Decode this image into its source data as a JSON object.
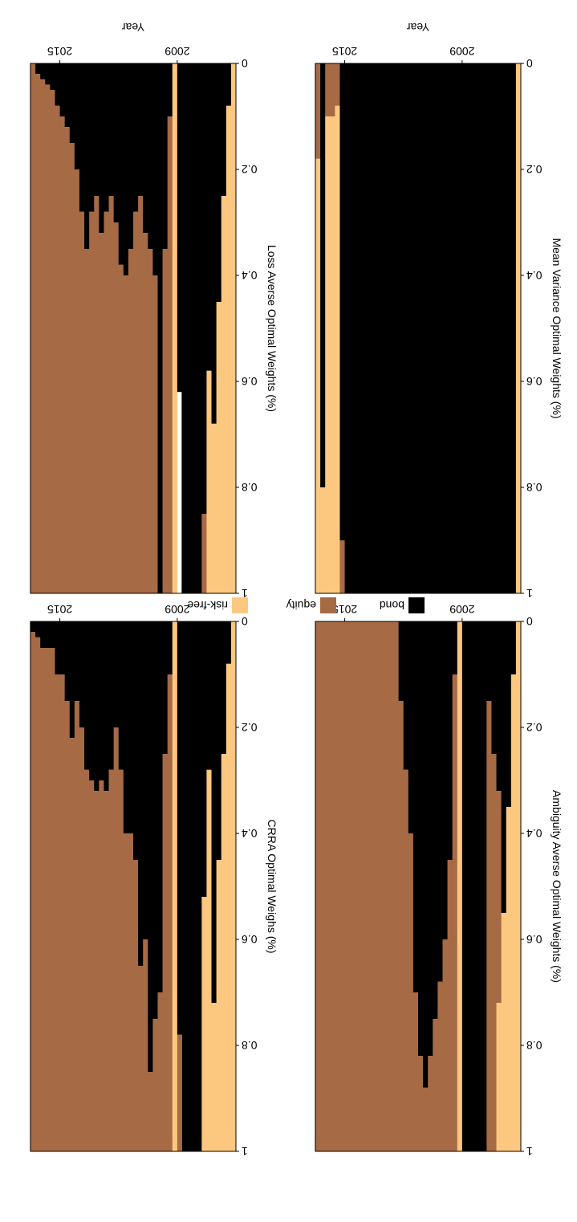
{
  "colors": {
    "bond": "#000000",
    "equity": "#a66a45",
    "risk_free": "#fcc77f"
  },
  "legend": {
    "placement": "bottom-center",
    "entries": [
      {
        "key": "bond",
        "label": "bond"
      },
      {
        "key": "equity",
        "label": "equity"
      },
      {
        "key": "risk_free",
        "label": "risk-free"
      }
    ]
  },
  "chart_data": [
    {
      "type": "area",
      "ylabel": "CRRA Optimal Weighs (%)",
      "xlabel": "Year",
      "x_ticks": [
        "2009",
        "2015"
      ],
      "ylim": [
        0,
        1
      ],
      "y_ticks": [
        "0",
        "0.2",
        "0.4",
        "0.6",
        "0.8",
        "1"
      ],
      "x": [
        2006.0,
        2006.25,
        2006.5,
        2006.75,
        2007.0,
        2007.25,
        2007.5,
        2007.75,
        2008.0,
        2008.25,
        2008.5,
        2008.75,
        2009.0,
        2009.25,
        2009.5,
        2009.75,
        2010.0,
        2010.25,
        2010.5,
        2010.75,
        2011.0,
        2011.25,
        2011.5,
        2011.75,
        2012.0,
        2012.25,
        2012.5,
        2012.75,
        2013.0,
        2013.25,
        2013.5,
        2013.75,
        2014.0,
        2014.25,
        2014.5,
        2014.75,
        2015.0,
        2015.25,
        2015.5,
        2015.75,
        2016.0,
        2016.25
      ],
      "series": [
        {
          "key": "risk_free",
          "values": [
            1.0,
            0.92,
            0.75,
            0.55,
            0.28,
            0.72,
            0.48,
            0.0,
            0.0,
            0.0,
            0.0,
            0.0,
            1.0,
            0.0,
            0.0,
            0.0,
            0.0,
            0.0,
            0.0,
            0.0,
            0.0,
            0.0,
            0.0,
            0.0,
            0.0,
            0.0,
            0.0,
            0.0,
            0.0,
            0.0,
            0.0,
            0.0,
            0.0,
            0.0,
            0.0,
            0.0,
            0.0,
            0.0,
            0.0,
            0.0,
            0.0,
            0.0
          ]
        },
        {
          "key": "equity",
          "values": [
            0.0,
            0.0,
            0.0,
            0.0,
            0.0,
            0.0,
            0.0,
            0.0,
            0.0,
            0.0,
            0.0,
            0.22,
            0.0,
            0.9,
            0.75,
            0.3,
            0.25,
            0.15,
            0.4,
            0.35,
            0.55,
            0.6,
            0.6,
            0.72,
            0.8,
            0.72,
            0.68,
            0.7,
            0.68,
            0.7,
            0.72,
            0.8,
            0.85,
            0.78,
            0.85,
            0.9,
            0.9,
            0.95,
            0.95,
            0.95,
            0.97,
            0.98
          ]
        },
        {
          "key": "bond",
          "values": [
            0.0,
            0.08,
            0.25,
            0.45,
            0.72,
            0.28,
            0.52,
            1.0,
            1.0,
            1.0,
            1.0,
            0.78,
            0.0,
            0.1,
            0.25,
            0.7,
            0.75,
            0.85,
            0.6,
            0.65,
            0.45,
            0.4,
            0.4,
            0.28,
            0.2,
            0.28,
            0.32,
            0.3,
            0.32,
            0.3,
            0.28,
            0.2,
            0.15,
            0.22,
            0.15,
            0.1,
            0.1,
            0.05,
            0.05,
            0.05,
            0.03,
            0.02
          ]
        }
      ]
    },
    {
      "type": "area",
      "ylabel": "Ambiguity Averse Optimal Weights (%)",
      "xlabel": "Year",
      "x_ticks": [
        "2009",
        "2015"
      ],
      "ylim": [
        0,
        1
      ],
      "y_ticks": [
        "0",
        "0.2",
        "0.4",
        "0.6",
        "0.8",
        "1"
      ],
      "x": [
        2006.0,
        2006.25,
        2006.5,
        2006.75,
        2007.0,
        2007.25,
        2007.5,
        2007.75,
        2008.0,
        2008.25,
        2008.5,
        2008.75,
        2009.0,
        2009.25,
        2009.5,
        2009.75,
        2010.0,
        2010.25,
        2010.5,
        2010.75,
        2011.0,
        2011.25,
        2011.5,
        2011.75,
        2012.0,
        2012.25,
        2012.5,
        2012.75,
        2013.0,
        2013.25,
        2013.5,
        2013.75,
        2014.0,
        2014.25,
        2014.5,
        2014.75,
        2015.0,
        2015.25,
        2015.5,
        2015.75,
        2016.0,
        2016.25
      ],
      "series": [
        {
          "key": "risk_free",
          "values": [
            1.0,
            0.9,
            0.65,
            0.45,
            0.28,
            0.0,
            0.0,
            0.0,
            0.0,
            0.0,
            0.0,
            0.0,
            1.0,
            0.0,
            0.0,
            0.0,
            0.0,
            0.0,
            0.0,
            0.0,
            0.0,
            0.0,
            0.0,
            0.0,
            0.0,
            0.0,
            0.0,
            0.0,
            0.0,
            0.0,
            0.0,
            0.0,
            0.0,
            0.0,
            0.0,
            0.0,
            0.0,
            0.0,
            0.0,
            0.0,
            0.0,
            0.0
          ]
        },
        {
          "key": "equity",
          "values": [
            0.0,
            0.0,
            0.0,
            0.0,
            0.4,
            0.75,
            0.85,
            0.0,
            0.0,
            0.0,
            0.0,
            0.0,
            0.0,
            0.9,
            0.55,
            0.4,
            0.32,
            0.25,
            0.18,
            0.12,
            0.18,
            0.3,
            0.6,
            0.72,
            0.85,
            1.0,
            1.0,
            1.0,
            1.0,
            1.0,
            1.0,
            1.0,
            1.0,
            1.0,
            1.0,
            1.0,
            1.0,
            1.0,
            1.0,
            1.0,
            1.0,
            1.0
          ]
        },
        {
          "key": "bond",
          "values": [
            0.0,
            0.1,
            0.35,
            0.55,
            0.32,
            0.25,
            0.15,
            1.0,
            1.0,
            1.0,
            1.0,
            1.0,
            0.0,
            0.1,
            0.45,
            0.6,
            0.68,
            0.75,
            0.82,
            0.88,
            0.82,
            0.7,
            0.4,
            0.28,
            0.15,
            0.0,
            0.0,
            0.0,
            0.0,
            0.0,
            0.0,
            0.0,
            0.0,
            0.0,
            0.0,
            0.0,
            0.0,
            0.0,
            0.0,
            0.0,
            0.0,
            0.0
          ]
        }
      ]
    },
    {
      "type": "area",
      "ylabel": "Loss Averse Optimal Weights (%)",
      "xlabel": "Year",
      "x_ticks": [
        "2009",
        "2015"
      ],
      "ylim": [
        0,
        1
      ],
      "y_ticks": [
        "0",
        "0.2",
        "0.4",
        "0.6",
        "0.8",
        "1"
      ],
      "x": [
        2006.0,
        2006.25,
        2006.5,
        2006.75,
        2007.0,
        2007.25,
        2007.5,
        2007.75,
        2008.0,
        2008.25,
        2008.5,
        2008.75,
        2009.0,
        2009.25,
        2009.5,
        2009.75,
        2010.0,
        2010.25,
        2010.5,
        2010.75,
        2011.0,
        2011.25,
        2011.5,
        2011.75,
        2012.0,
        2012.25,
        2012.5,
        2012.75,
        2013.0,
        2013.25,
        2013.5,
        2013.75,
        2014.0,
        2014.25,
        2014.5,
        2014.75,
        2015.0,
        2015.25,
        2015.5,
        2015.75,
        2016.0,
        2016.25
      ],
      "series": [
        {
          "key": "risk_free",
          "values": [
            1.0,
            0.92,
            0.75,
            0.55,
            0.32,
            0.42,
            0.0,
            0.0,
            0.0,
            0.0,
            0.0,
            0.0,
            1.0,
            0.0,
            0.0,
            0.0,
            0.0,
            0.0,
            0.0,
            0.0,
            0.0,
            0.0,
            0.0,
            0.0,
            0.0,
            0.0,
            0.0,
            0.0,
            0.0,
            0.0,
            0.0,
            0.0,
            0.0,
            0.0,
            0.0,
            0.0,
            0.0,
            0.0,
            0.0,
            0.0,
            0.0,
            0.0
          ]
        },
        {
          "key": "equity",
          "values": [
            0.0,
            0.0,
            0.0,
            0.0,
            0.0,
            0.0,
            0.15,
            0.0,
            0.0,
            0.0,
            0.0,
            0.0,
            0.0,
            0.9,
            0.65,
            0.0,
            0.6,
            0.65,
            0.68,
            0.75,
            0.72,
            0.65,
            0.6,
            0.62,
            0.7,
            0.75,
            0.72,
            0.68,
            0.75,
            0.72,
            0.65,
            0.72,
            0.8,
            0.85,
            0.88,
            0.9,
            0.92,
            0.95,
            0.96,
            0.97,
            0.98,
            1.0
          ]
        },
        {
          "key": "bond",
          "values": [
            0.0,
            0.08,
            0.25,
            0.45,
            0.68,
            0.58,
            0.85,
            1.0,
            1.0,
            1.0,
            1.0,
            0.62,
            0.0,
            0.1,
            0.35,
            1.0,
            0.4,
            0.35,
            0.32,
            0.25,
            0.28,
            0.35,
            0.4,
            0.38,
            0.3,
            0.25,
            0.28,
            0.32,
            0.25,
            0.28,
            0.35,
            0.28,
            0.2,
            0.15,
            0.12,
            0.1,
            0.08,
            0.05,
            0.04,
            0.03,
            0.02,
            0.0
          ]
        }
      ]
    },
    {
      "type": "area",
      "ylabel": "Mean Variance Optimal Weights (%)",
      "xlabel": "Year",
      "x_ticks": [
        "2009",
        "2015"
      ],
      "ylim": [
        0,
        1
      ],
      "y_ticks": [
        "0",
        "0.2",
        "0.4",
        "0.6",
        "0.8",
        "1"
      ],
      "x": [
        2006.0,
        2006.25,
        2006.5,
        2006.75,
        2007.0,
        2007.25,
        2007.5,
        2007.75,
        2008.0,
        2008.25,
        2008.5,
        2008.75,
        2009.0,
        2009.25,
        2009.5,
        2009.75,
        2010.0,
        2010.25,
        2010.5,
        2010.75,
        2011.0,
        2011.25,
        2011.5,
        2011.75,
        2012.0,
        2012.25,
        2012.5,
        2012.75,
        2013.0,
        2013.25,
        2013.5,
        2013.75,
        2014.0,
        2014.25,
        2014.5,
        2014.75,
        2015.0,
        2015.25,
        2015.5,
        2015.75,
        2016.0,
        2016.25
      ],
      "series": [
        {
          "key": "risk_free",
          "values": [
            1.0,
            0.0,
            0.0,
            0.0,
            0.0,
            0.0,
            0.0,
            0.0,
            0.0,
            0.0,
            0.0,
            0.0,
            0.0,
            0.0,
            0.0,
            0.0,
            0.0,
            0.0,
            0.0,
            0.0,
            0.0,
            0.0,
            0.0,
            0.0,
            0.0,
            0.0,
            0.0,
            0.0,
            0.0,
            0.0,
            0.0,
            0.0,
            0.0,
            0.0,
            0.0,
            0.0,
            0.0,
            0.92,
            0.9,
            0.9,
            0.2,
            0.82
          ]
        },
        {
          "key": "equity",
          "values": [
            0.0,
            0.0,
            0.0,
            0.0,
            0.0,
            0.0,
            0.0,
            0.0,
            0.0,
            0.0,
            0.0,
            0.0,
            0.0,
            0.0,
            0.0,
            0.0,
            0.0,
            0.0,
            0.0,
            0.0,
            0.0,
            0.0,
            0.0,
            0.0,
            0.0,
            0.0,
            0.0,
            0.0,
            0.0,
            0.0,
            0.0,
            0.0,
            0.0,
            0.0,
            0.0,
            0.0,
            0.1,
            0.08,
            0.1,
            0.1,
            0.0,
            0.18
          ]
        },
        {
          "key": "bond",
          "values": [
            0.0,
            1.0,
            1.0,
            1.0,
            1.0,
            1.0,
            1.0,
            1.0,
            1.0,
            1.0,
            1.0,
            1.0,
            1.0,
            1.0,
            1.0,
            1.0,
            1.0,
            1.0,
            1.0,
            1.0,
            1.0,
            1.0,
            1.0,
            1.0,
            1.0,
            1.0,
            1.0,
            1.0,
            1.0,
            1.0,
            1.0,
            1.0,
            1.0,
            1.0,
            1.0,
            1.0,
            0.9,
            0.0,
            0.0,
            0.0,
            0.8,
            0.0
          ]
        }
      ]
    }
  ]
}
